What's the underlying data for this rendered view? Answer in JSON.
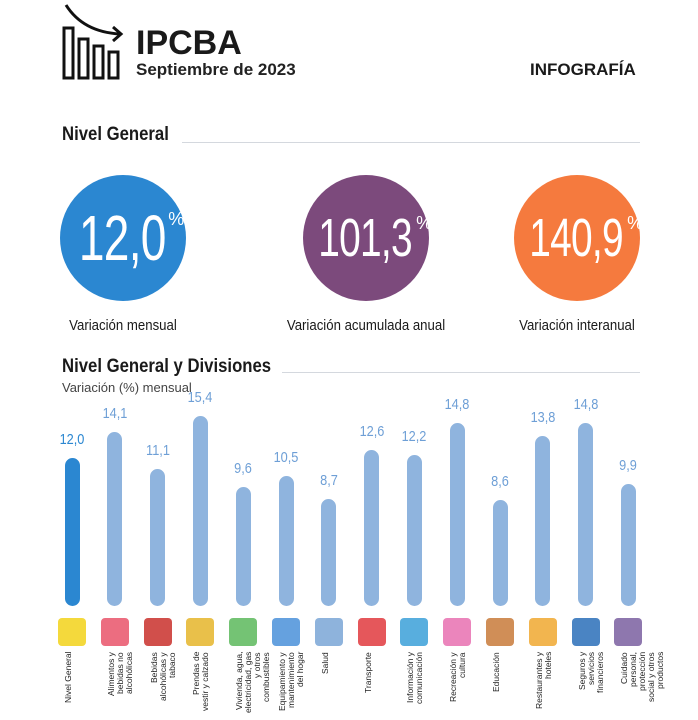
{
  "header": {
    "title": "IPCBA",
    "subtitle": "Septiembre de 2023",
    "tag": "INFOGRAFÍA",
    "logo_icon": "bar-chart-decline-icon"
  },
  "nivel_general": {
    "heading": "Nivel General",
    "cards": [
      {
        "value": "12,0",
        "unit": "%",
        "label": "Variación mensual",
        "color": "#2b87d1"
      },
      {
        "value": "101,3",
        "unit": "%",
        "label": "Variación acumulada anual",
        "color": "#7c4a7c"
      },
      {
        "value": "140,9",
        "unit": "%",
        "label": "Variación interanual",
        "color": "#f57a3e"
      }
    ]
  },
  "chart_data": {
    "type": "bar",
    "title": "Nivel General y Divisiones",
    "ylabel": "Variación (%) mensual",
    "ylim": [
      0,
      16
    ],
    "categories": [
      "Nivel General",
      "Alimentos y bebidas no alcohólicas",
      "Bebidas alcohólicas y tabaco",
      "Prendas de vestir y calzado",
      "Vivienda, agua, electricidad, gas y otros combustibles",
      "Equipamiento y mantenimiento del hogar",
      "Salud",
      "Transporte",
      "Información y comunicación",
      "Recreación y cultura",
      "Educación",
      "Restaurantes y hoteles",
      "Seguros y servicios financieros",
      "Cuidado personal, protección social y otros productos"
    ],
    "labels": [
      "12,0",
      "14,1",
      "11,1",
      "15,4",
      "9,6",
      "10,5",
      "8,7",
      "12,6",
      "12,2",
      "14,8",
      "8,6",
      "13,8",
      "14,8",
      "9,9"
    ],
    "values": [
      12.0,
      14.1,
      11.1,
      15.4,
      9.6,
      10.5,
      8.7,
      12.6,
      12.2,
      14.8,
      8.6,
      13.8,
      14.8,
      9.9
    ],
    "highlight_color": "#2b87d1",
    "bar_color": "#8fb4de",
    "label_color": "#6e9fd6"
  }
}
